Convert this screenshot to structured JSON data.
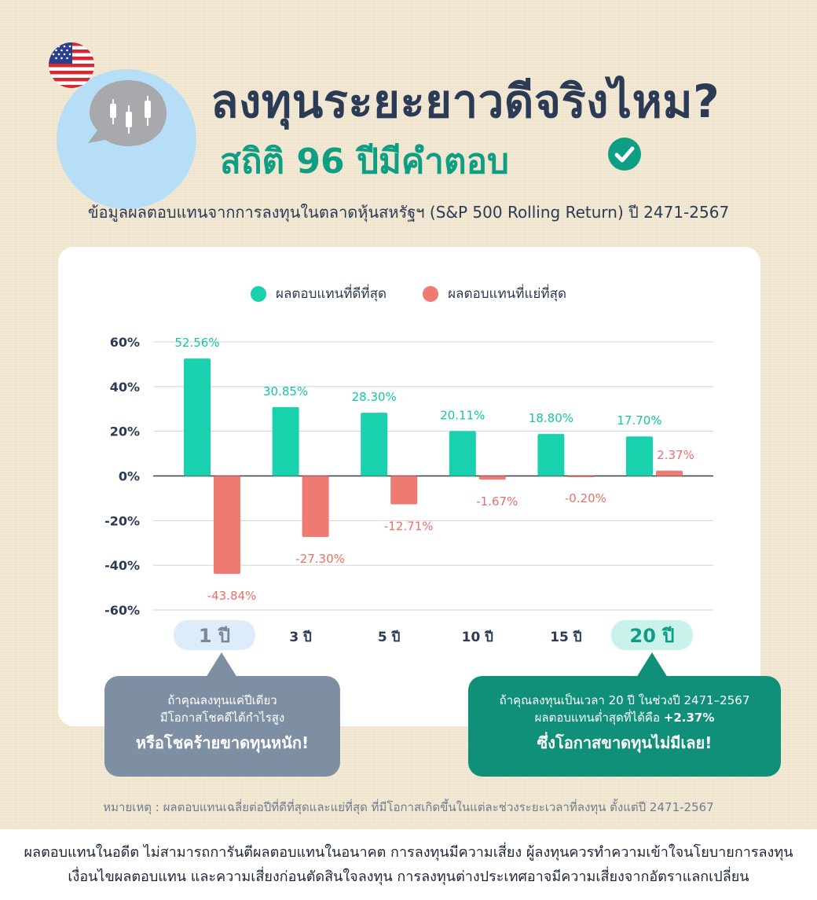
{
  "header": {
    "title": "ลงทุนระยะยาวดีจริงไหม?",
    "subtitle": "สถิติ 96 ปีมีคำตอบ",
    "source": "ข้อมูลผลตอบแทนจากการลงทุนในตลาดหุ้นสหรัฐฯ (S&P 500 Rolling Return) ปี 2471-2567",
    "flag_icon": "us-flag-icon",
    "bubble_icon": "candlestick-chat-icon",
    "check_icon": "check-circle-icon"
  },
  "legend": {
    "best_label": "ผลตอบแทนที่ดีที่สุด",
    "worst_label": "ผลตอบแทนที่แย่ที่สุด"
  },
  "colors": {
    "best": "#19d1ad",
    "worst": "#ee7a72",
    "best_label": "#14c6a3",
    "worst_label": "#ec6f67",
    "title": "#2b3a55",
    "subtitle": "#0d9e83"
  },
  "chart_data": {
    "type": "bar",
    "categories": [
      "1 ปี",
      "3 ปี",
      "5 ปี",
      "10 ปี",
      "15 ปี",
      "20 ปี"
    ],
    "series": [
      {
        "name": "ผลตอบแทนที่ดีที่สุด",
        "values": [
          52.56,
          30.85,
          28.3,
          20.11,
          18.8,
          17.7
        ],
        "labels": [
          "52.56%",
          "30.85%",
          "28.30%",
          "20.11%",
          "18.80%",
          "17.70%"
        ]
      },
      {
        "name": "ผลตอบแทนที่แย่ที่สุด",
        "values": [
          -43.84,
          -27.3,
          -12.71,
          -1.67,
          -0.2,
          2.37
        ],
        "labels": [
          "-43.84%",
          "-27.30%",
          "-12.71%",
          "-1.67%",
          "-0.20%",
          "2.37%"
        ]
      }
    ],
    "ylim": [
      -60,
      60
    ],
    "yticks": [
      60,
      40,
      20,
      0,
      -20,
      -40,
      -60
    ],
    "ytick_labels": [
      "60%",
      "40%",
      "20%",
      "0%",
      "-20%",
      "-40%",
      "-60%"
    ],
    "grid": true,
    "legend": "top-center",
    "highlighted_categories": [
      "1 ปี",
      "20 ปี"
    ]
  },
  "callouts": {
    "left": {
      "line1": "ถ้าคุณลงทุนแค่ปีเดียว",
      "line2": "มีโอกาสโชคดีได้กำไรสูง",
      "emphasis": "หรือโชคร้ายขาดทุนหนัก!"
    },
    "right": {
      "line1": "ถ้าคุณลงทุนเป็นเวลา 20 ปี ในช่วงปี 2471–2567",
      "line2_prefix": "ผลตอบแทนต่ำสุดที่ได้คือ ",
      "line2_value": "+2.37%",
      "emphasis": "ซึ่งโอกาสขาดทุนไม่มีเลย!"
    }
  },
  "note": "หมายเหตุ : ผลตอบแทนเฉลี่ยต่อปีที่ดีที่สุดและแย่ที่สุด ที่มีโอกาสเกิดขึ้นในแต่ละช่วงระยะเวลาที่ลงทุน ตั้งแต่ปี 2471-2567",
  "disclaimer": {
    "line1": "ผลตอบแทนในอดีต ไม่สามารถการันตีผลตอบแทนในอนาคต การลงทุนมีความเสี่ยง ผู้ลงทุนควรทำความเข้าใจนโยบายการลงทุน",
    "line2": "เงื่อนไขผลตอบแทน และความเสี่ยงก่อนตัดสินใจลงทุน การลงทุนต่างประเทศอาจมีความเสี่ยงจากอัตราแลกเปลี่ยน"
  }
}
